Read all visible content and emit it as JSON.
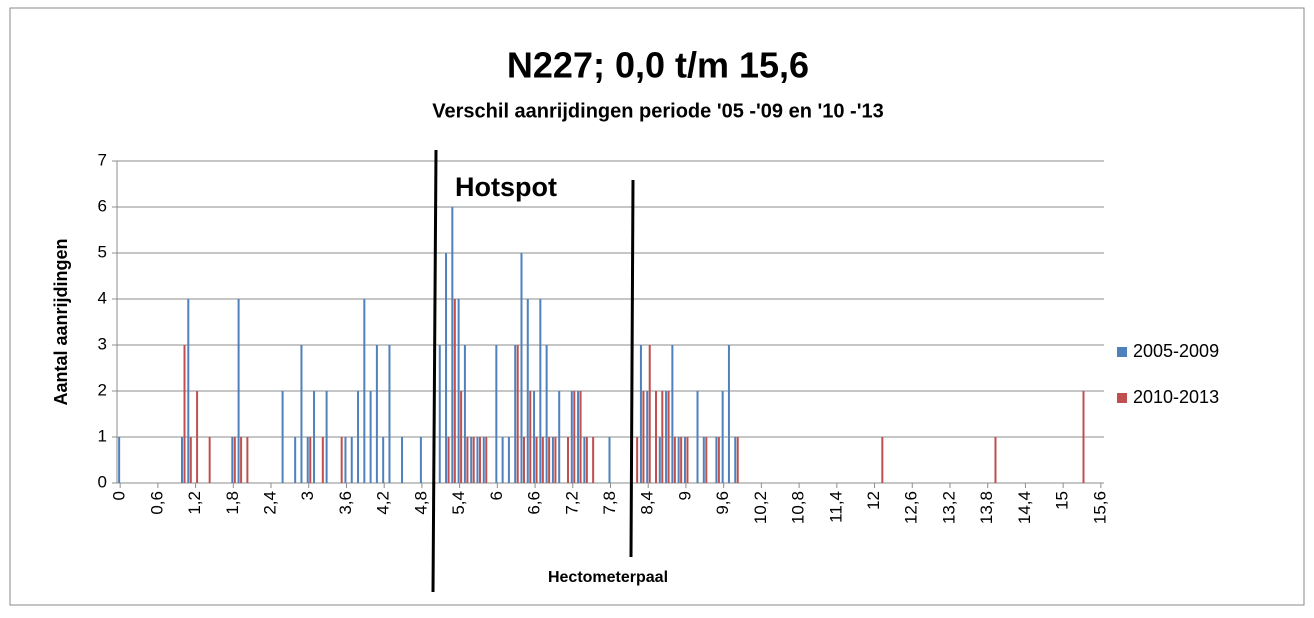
{
  "chart_data": {
    "type": "bar",
    "title": "N227; 0,0 t/m 15,6",
    "subtitle": "Verschil aanrijdingen periode '05 -'09 en '10 -'13",
    "x_label": "Hectometerpaal",
    "y_label": "Aantal aanrijdingen",
    "annotation": "Hotspot",
    "categories": [
      "0",
      null,
      null,
      null,
      null,
      null,
      "0,6",
      null,
      null,
      null,
      null,
      null,
      "1,2",
      null,
      null,
      null,
      null,
      null,
      "1,8",
      null,
      null,
      null,
      null,
      null,
      "2,4",
      null,
      null,
      null,
      null,
      null,
      "3",
      null,
      null,
      null,
      null,
      null,
      "3,6",
      null,
      null,
      null,
      null,
      null,
      "4,2",
      null,
      null,
      null,
      null,
      null,
      "4,8",
      null,
      null,
      null,
      null,
      null,
      "5,4",
      null,
      null,
      null,
      null,
      null,
      "6",
      null,
      null,
      null,
      null,
      null,
      "6,6",
      null,
      null,
      null,
      null,
      null,
      "7,2",
      null,
      null,
      null,
      null,
      null,
      "7,8",
      null,
      null,
      null,
      null,
      null,
      "8,4",
      null,
      null,
      null,
      null,
      null,
      "9",
      null,
      null,
      null,
      null,
      null,
      "9,6",
      null,
      null,
      null,
      null,
      null,
      "10,2",
      null,
      null,
      null,
      null,
      null,
      "10,8",
      null,
      null,
      null,
      null,
      null,
      "11,4",
      null,
      null,
      null,
      null,
      null,
      "12",
      null,
      null,
      null,
      null,
      null,
      "12,6",
      null,
      null,
      null,
      null,
      null,
      "13,2",
      null,
      null,
      null,
      null,
      null,
      "13,8",
      null,
      null,
      null,
      null,
      null,
      "14,4",
      null,
      null,
      null,
      null,
      null,
      "15",
      null,
      null,
      null,
      null,
      null,
      "15,6"
    ],
    "series": [
      {
        "name": "2005-2009",
        "color": "#4f81bd",
        "values": [
          1,
          0,
          0,
          0,
          0,
          0,
          0,
          0,
          0,
          0,
          1,
          4,
          0,
          0,
          0,
          0,
          0,
          0,
          1,
          4,
          0,
          0,
          0,
          0,
          0,
          0,
          2,
          0,
          1,
          3,
          1,
          2,
          0,
          2,
          0,
          0,
          1,
          1,
          2,
          4,
          2,
          3,
          1,
          3,
          0,
          1,
          0,
          0,
          1,
          0,
          1,
          3,
          5,
          6,
          4,
          3,
          1,
          1,
          1,
          0,
          3,
          1,
          1,
          3,
          5,
          4,
          2,
          4,
          3,
          1,
          2,
          0,
          2,
          2,
          1,
          0,
          0,
          0,
          1,
          0,
          0,
          0,
          0,
          3,
          2,
          0,
          1,
          2,
          3,
          1,
          1,
          0,
          2,
          1,
          0,
          1,
          2,
          3,
          1,
          0,
          0,
          0,
          0,
          0,
          0,
          0,
          0,
          0,
          0,
          0,
          0,
          0,
          0,
          0,
          0,
          0,
          0,
          0,
          0,
          0,
          0,
          0,
          0,
          0,
          0,
          0,
          0,
          0,
          0,
          0,
          0,
          0,
          0,
          0,
          0,
          0,
          0,
          0,
          0,
          0,
          0,
          0,
          0,
          0,
          0,
          0,
          0,
          0,
          0,
          0,
          0,
          0,
          0,
          0,
          0,
          0,
          0
        ]
      },
      {
        "name": "2010-2013",
        "color": "#c0504d",
        "values": [
          0,
          0,
          0,
          0,
          0,
          0,
          0,
          0,
          0,
          0,
          3,
          1,
          2,
          0,
          1,
          0,
          0,
          0,
          1,
          1,
          1,
          0,
          0,
          0,
          0,
          0,
          0,
          0,
          0,
          0,
          1,
          0,
          1,
          0,
          0,
          1,
          0,
          0,
          0,
          0,
          0,
          0,
          0,
          0,
          0,
          0,
          0,
          0,
          0,
          0,
          0,
          0,
          1,
          4,
          2,
          1,
          1,
          1,
          1,
          0,
          0,
          0,
          0,
          3,
          1,
          2,
          1,
          1,
          1,
          1,
          0,
          1,
          2,
          2,
          1,
          1,
          0,
          0,
          0,
          0,
          0,
          0,
          1,
          2,
          3,
          2,
          2,
          2,
          1,
          1,
          1,
          0,
          0,
          1,
          0,
          1,
          0,
          0,
          1,
          0,
          0,
          0,
          0,
          0,
          0,
          0,
          0,
          0,
          0,
          0,
          0,
          0,
          0,
          0,
          0,
          0,
          0,
          0,
          0,
          0,
          0,
          1,
          0,
          0,
          0,
          0,
          0,
          0,
          0,
          0,
          0,
          0,
          0,
          0,
          0,
          0,
          0,
          0,
          0,
          1,
          0,
          0,
          0,
          0,
          0,
          0,
          0,
          0,
          0,
          0,
          0,
          0,
          0,
          2,
          0,
          0,
          0
        ]
      }
    ],
    "ylim": [
      0,
      7
    ],
    "yticks": [
      0,
      1,
      2,
      3,
      4,
      5,
      6,
      7
    ],
    "grid": true,
    "legend": "right"
  }
}
